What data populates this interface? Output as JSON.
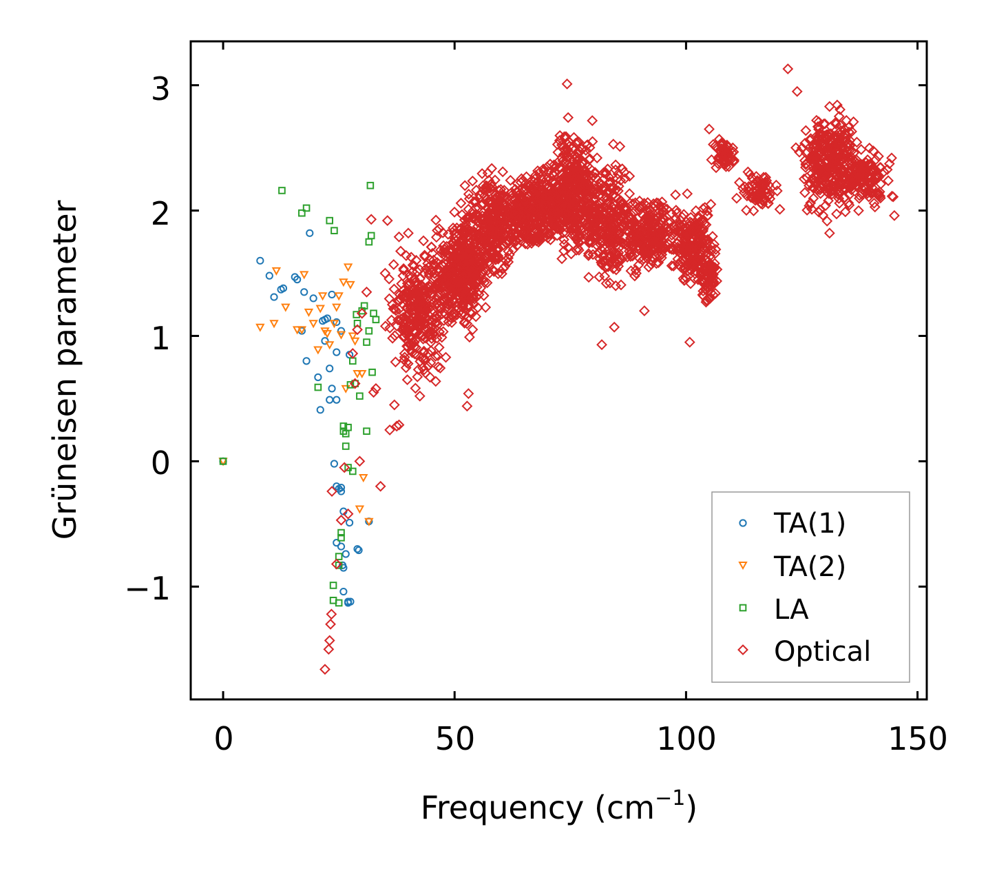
{
  "chart_data": {
    "type": "scatter",
    "title": "",
    "xlabel": "Frequency (cm",
    "xlabel_sup": "−1",
    "xlabel_close": ")",
    "ylabel": "Grüneisen parameter",
    "xlim": [
      -7,
      152
    ],
    "ylim": [
      -1.9,
      3.35
    ],
    "xticks": [
      0,
      50,
      100,
      150
    ],
    "xtick_labels": [
      "0",
      "50",
      "100",
      "150"
    ],
    "yticks": [
      -1,
      0,
      1,
      2,
      3
    ],
    "ytick_labels": [
      "−1",
      "0",
      "1",
      "2",
      "3"
    ],
    "legend_position": "lower-right",
    "series": [
      {
        "name": "TA(1)",
        "marker": "circle",
        "color": "#1f77b4",
        "points": [
          [
            0,
            0
          ],
          [
            8,
            1.6
          ],
          [
            10,
            1.48
          ],
          [
            11,
            1.31
          ],
          [
            12.5,
            1.37
          ],
          [
            13,
            1.38
          ],
          [
            15.5,
            1.47
          ],
          [
            16,
            1.45
          ],
          [
            17,
            1.04
          ],
          [
            17.5,
            1.35
          ],
          [
            18,
            0.8
          ],
          [
            18.7,
            1.82
          ],
          [
            19.5,
            1.3
          ],
          [
            20.5,
            0.67
          ],
          [
            21,
            0.41
          ],
          [
            21.5,
            1.12
          ],
          [
            22,
            1.13
          ],
          [
            22,
            0.96
          ],
          [
            22.5,
            1.14
          ],
          [
            23,
            0.74
          ],
          [
            23,
            0.49
          ],
          [
            23.5,
            1.33
          ],
          [
            23.5,
            0.58
          ],
          [
            24,
            -0.02
          ],
          [
            24.5,
            0.87
          ],
          [
            24.5,
            0.49
          ],
          [
            24.5,
            1.11
          ],
          [
            24.5,
            -0.2
          ],
          [
            24.5,
            -0.65
          ],
          [
            25,
            -0.22
          ],
          [
            25.5,
            1.04
          ],
          [
            25.5,
            -0.68
          ],
          [
            25.5,
            -0.21
          ],
          [
            25.5,
            -0.24
          ],
          [
            25.8,
            -0.83
          ],
          [
            26,
            -0.85
          ],
          [
            26,
            -0.4
          ],
          [
            26,
            -1.04
          ],
          [
            26.5,
            -0.74
          ],
          [
            27,
            -1.13
          ],
          [
            27,
            -1.12
          ],
          [
            27.3,
            0.85
          ],
          [
            27.3,
            -0.49
          ],
          [
            27.5,
            -1.12
          ],
          [
            29,
            -0.7
          ],
          [
            29.3,
            -0.71
          ],
          [
            31.5,
            -0.48
          ]
        ]
      },
      {
        "name": "TA(2)",
        "marker": "triangle-down",
        "color": "#ff7f0e",
        "points": [
          [
            0,
            0
          ],
          [
            8,
            1.07
          ],
          [
            11,
            1.1
          ],
          [
            11.5,
            1.52
          ],
          [
            13.5,
            1.23
          ],
          [
            16,
            1.05
          ],
          [
            17,
            1.05
          ],
          [
            17.5,
            1.49
          ],
          [
            18.5,
            1.19
          ],
          [
            19.5,
            1.1
          ],
          [
            20.5,
            0.89
          ],
          [
            21,
            1.22
          ],
          [
            21.5,
            1.32
          ],
          [
            22,
            1.04
          ],
          [
            22.5,
            1.02
          ],
          [
            23,
            0.93
          ],
          [
            24,
            1.1
          ],
          [
            24.5,
            1.23
          ],
          [
            25,
            1.32
          ],
          [
            25.5,
            1.01
          ],
          [
            26,
            1.43
          ],
          [
            26.5,
            0.58
          ],
          [
            27,
            1.55
          ],
          [
            27.5,
            1.41
          ],
          [
            28,
            1.0
          ],
          [
            28.5,
            0.96
          ],
          [
            29,
            0.7
          ],
          [
            29.5,
            -0.38
          ],
          [
            30,
            0.7
          ],
          [
            30.3,
            -0.13
          ],
          [
            31.5,
            -0.48
          ]
        ]
      },
      {
        "name": "LA",
        "marker": "square",
        "color": "#2ca02c",
        "points": [
          [
            0,
            0
          ],
          [
            12.7,
            2.16
          ],
          [
            17,
            1.98
          ],
          [
            18,
            2.02
          ],
          [
            20.5,
            0.59
          ],
          [
            23,
            1.92
          ],
          [
            24,
            1.84
          ],
          [
            23.8,
            -0.99
          ],
          [
            23.8,
            -1.11
          ],
          [
            25,
            -1.13
          ],
          [
            25,
            -0.76
          ],
          [
            25,
            -0.83
          ],
          [
            25.5,
            -0.57
          ],
          [
            25.5,
            -0.61
          ],
          [
            26,
            0.24
          ],
          [
            26,
            0.28
          ],
          [
            26.5,
            0.12
          ],
          [
            26.5,
            0.22
          ],
          [
            27,
            -0.05
          ],
          [
            27,
            0.27
          ],
          [
            27.5,
            0.61
          ],
          [
            28,
            -0.08
          ],
          [
            28,
            0.8
          ],
          [
            28.5,
            0.62
          ],
          [
            28.8,
            1.17
          ],
          [
            29,
            1.1
          ],
          [
            29.5,
            0.52
          ],
          [
            30,
            1.2
          ],
          [
            30.5,
            1.24
          ],
          [
            31,
            0.24
          ],
          [
            31,
            0.95
          ],
          [
            31.5,
            1.04
          ],
          [
            31.5,
            1.75
          ],
          [
            31.8,
            2.2
          ],
          [
            32,
            1.8
          ],
          [
            32.2,
            0.71
          ],
          [
            32.5,
            1.18
          ],
          [
            33,
            1.13
          ]
        ]
      },
      {
        "name": "Optical",
        "marker": "diamond",
        "color": "#d62728",
        "points": [
          [
            22,
            -1.66
          ],
          [
            22.8,
            -1.5
          ],
          [
            23,
            -1.43
          ],
          [
            23.2,
            -1.3
          ],
          [
            23.4,
            -1.22
          ],
          [
            23.5,
            -0.24
          ],
          [
            24.5,
            -0.82
          ],
          [
            25.5,
            -0.47
          ],
          [
            26.2,
            -0.05
          ],
          [
            27,
            -0.42
          ],
          [
            28,
            0.86
          ],
          [
            28.5,
            0.62
          ],
          [
            29,
            1.05
          ],
          [
            29.5,
            0.0
          ],
          [
            30,
            1.18
          ],
          [
            31,
            1.35
          ],
          [
            32,
            1.93
          ],
          [
            32.5,
            0.55
          ],
          [
            33,
            0.58
          ],
          [
            34,
            -0.2
          ],
          [
            35,
            1.5
          ],
          [
            35.5,
            1.92
          ],
          [
            36,
            0.25
          ],
          [
            37,
            0.45
          ],
          [
            37.5,
            0.28
          ],
          [
            38,
            0.29
          ],
          [
            38,
            1.79
          ],
          [
            40,
            1.82
          ],
          [
            42.5,
            0.52
          ],
          [
            52.7,
            0.44
          ],
          [
            53,
            0.54
          ],
          [
            74.3,
            3.01
          ],
          [
            81.8,
            0.93
          ],
          [
            84.5,
            1.07
          ],
          [
            91,
            1.2
          ],
          [
            100.8,
            0.95
          ],
          [
            105,
            2.65
          ],
          [
            122,
            3.13
          ],
          [
            131,
            2.83
          ],
          [
            145,
            1.96
          ],
          [
            142,
            2.1
          ],
          [
            138,
            2.35
          ],
          [
            131,
            1.82
          ],
          [
            127.5,
            2.25
          ],
          [
            124,
            2.95
          ]
        ],
        "clusters": [
          {
            "x": [
              34,
              50
            ],
            "y": [
              0.55,
              1.8
            ],
            "n": 300
          },
          {
            "x": [
              42,
              58
            ],
            "y": [
              0.9,
              2.0
            ],
            "n": 260
          },
          {
            "x": [
              48,
              58
            ],
            "y": [
              1.0,
              2.3
            ],
            "n": 200
          },
          {
            "x": [
              53,
              64
            ],
            "y": [
              1.3,
              2.45
            ],
            "n": 240
          },
          {
            "x": [
              58,
              72
            ],
            "y": [
              1.6,
              2.35
            ],
            "n": 220
          },
          {
            "x": [
              63,
              78
            ],
            "y": [
              1.65,
              2.45
            ],
            "n": 240
          },
          {
            "x": [
              70,
              82
            ],
            "y": [
              1.45,
              2.85
            ],
            "n": 320
          },
          {
            "x": [
              76,
              90
            ],
            "y": [
              1.25,
              2.6
            ],
            "n": 300
          },
          {
            "x": [
              84,
              100
            ],
            "y": [
              1.45,
              2.2
            ],
            "n": 250
          },
          {
            "x": [
              96,
              108
            ],
            "y": [
              1.25,
              2.15
            ],
            "n": 220
          },
          {
            "x": [
              102,
              108
            ],
            "y": [
              1.2,
              1.7
            ],
            "n": 60
          },
          {
            "x": [
              105,
              112
            ],
            "y": [
              2.3,
              2.6
            ],
            "n": 60
          },
          {
            "x": [
              110,
              122
            ],
            "y": [
              1.95,
              2.35
            ],
            "n": 70
          },
          {
            "x": [
              123,
              140
            ],
            "y": [
              1.85,
              2.9
            ],
            "n": 340
          },
          {
            "x": [
              132,
              146
            ],
            "y": [
              2.0,
              2.55
            ],
            "n": 110
          }
        ]
      }
    ]
  }
}
